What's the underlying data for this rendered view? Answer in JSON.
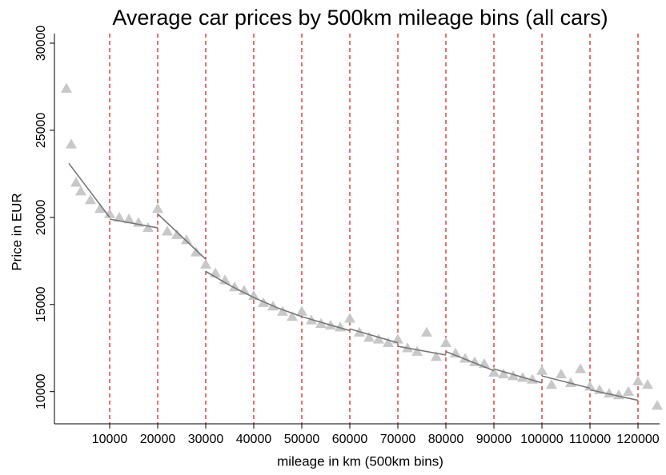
{
  "chart_data": {
    "type": "scatter",
    "title": "Average car prices by 500km mileage bins (all cars)",
    "x_label": "mileage in km (500km bins)",
    "y_label": "Price in EUR",
    "xlim": [
      -1500,
      124500
    ],
    "ylim": [
      8150,
      30550
    ],
    "xticks": [
      10000,
      20000,
      30000,
      40000,
      50000,
      60000,
      70000,
      80000,
      90000,
      100000,
      110000,
      120000
    ],
    "yticks": [
      10000,
      15000,
      20000,
      25000,
      30000
    ],
    "reference_lines_at_xticks": true,
    "reference_line_color": "#d62728",
    "series": [
      {
        "kind": "scatter",
        "marker": "triangle",
        "color": "#c8c8c8",
        "x": [
          1000,
          2000,
          3000,
          4000,
          6000,
          8000,
          10000,
          12000,
          14000,
          16000,
          18000,
          20000,
          22000,
          24000,
          26000,
          28000,
          30000,
          32000,
          34000,
          36000,
          38000,
          40000,
          42000,
          44000,
          46000,
          48000,
          50000,
          52000,
          54000,
          56000,
          58000,
          60000,
          62000,
          64000,
          66000,
          68000,
          70000,
          72000,
          74000,
          76000,
          78000,
          80000,
          82000,
          84000,
          86000,
          88000,
          90000,
          92000,
          94000,
          96000,
          98000,
          100000,
          102000,
          104000,
          106000,
          108000,
          110000,
          112000,
          114000,
          116000,
          118000,
          120000,
          122000,
          124000
        ],
        "values": [
          27400,
          24200,
          22000,
          21500,
          21000,
          20500,
          20200,
          20000,
          19900,
          19700,
          19400,
          20500,
          19200,
          19000,
          18700,
          18000,
          17300,
          16800,
          16400,
          16000,
          15800,
          15500,
          15100,
          14900,
          14600,
          14300,
          14600,
          14100,
          13900,
          13800,
          13700,
          14200,
          13400,
          13100,
          13000,
          12800,
          13000,
          12500,
          12300,
          13400,
          12000,
          12800,
          12200,
          11900,
          11700,
          11600,
          11100,
          11000,
          10900,
          10800,
          10700,
          11200,
          10400,
          11000,
          10500,
          11300,
          10300,
          10100,
          9900,
          9800,
          10000,
          10600,
          10400,
          9200
        ]
      },
      {
        "kind": "line",
        "color": "#777777",
        "x": [
          1500,
          10000,
          10000,
          10000,
          20000,
          20000,
          20000,
          30000,
          30000,
          30000,
          35000,
          40000,
          40000,
          40000,
          45000,
          50000,
          50000,
          50000,
          60000,
          60000,
          60000,
          70000,
          70000,
          70000,
          80000,
          80000,
          80000,
          90000,
          90000,
          90000,
          100000,
          100000,
          100000,
          110000,
          110000,
          110000,
          120000
        ],
        "values": [
          23100,
          20000,
          null,
          19900,
          19400,
          null,
          20200,
          17600,
          null,
          16900,
          16100,
          15400,
          null,
          15400,
          14800,
          14300,
          null,
          14300,
          13500,
          null,
          13600,
          12800,
          null,
          12600,
          12100,
          null,
          12300,
          11200,
          null,
          11300,
          10500,
          null,
          10900,
          10200,
          null,
          10100,
          9500
        ]
      }
    ]
  }
}
